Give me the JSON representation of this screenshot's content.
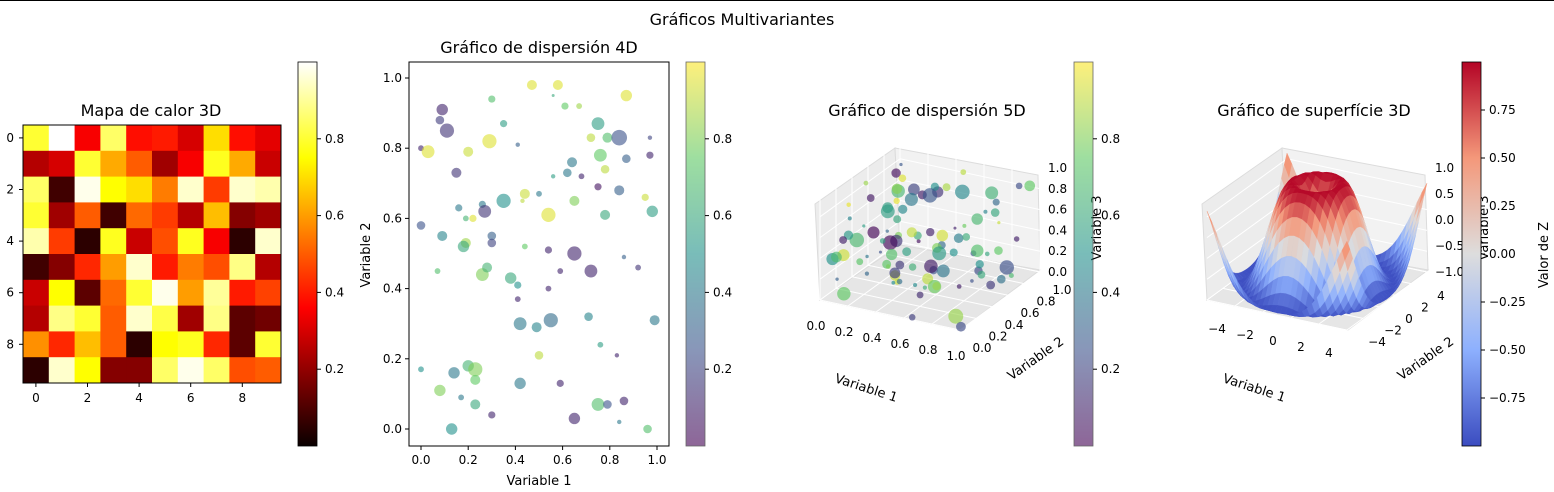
{
  "figure": {
    "suptitle": "Gráficos Multivariantes"
  },
  "chart_data": [
    {
      "type": "heatmap",
      "title": "Mapa de calor 3D",
      "xlabel": "",
      "ylabel": "",
      "x_ticks": [
        "0",
        "2",
        "4",
        "6",
        "8"
      ],
      "y_ticks": [
        "0",
        "2",
        "4",
        "6",
        "8"
      ],
      "colormap": "hot",
      "colorbar": {
        "ticks": [
          "0.2",
          "0.4",
          "0.6",
          "0.8"
        ],
        "range": [
          0.0,
          1.0
        ]
      },
      "values": [
        [
          0.8,
          1.0,
          0.35,
          0.85,
          0.38,
          0.4,
          0.3,
          0.7,
          0.38,
          0.32
        ],
        [
          0.25,
          0.3,
          0.8,
          0.62,
          0.5,
          0.22,
          0.35,
          0.78,
          0.62,
          0.28
        ],
        [
          0.85,
          0.08,
          0.98,
          0.75,
          0.7,
          0.55,
          0.95,
          0.45,
          0.95,
          0.92
        ],
        [
          0.8,
          0.22,
          0.5,
          0.08,
          0.52,
          0.45,
          0.25,
          0.65,
          0.18,
          0.22
        ],
        [
          0.92,
          0.45,
          0.05,
          0.78,
          0.28,
          0.48,
          0.78,
          0.35,
          0.05,
          0.95
        ],
        [
          0.08,
          0.18,
          0.42,
          0.6,
          0.95,
          0.4,
          0.55,
          0.48,
          0.88,
          0.25
        ],
        [
          0.28,
          0.75,
          0.12,
          0.52,
          0.8,
          0.98,
          0.6,
          0.9,
          0.4,
          0.46
        ],
        [
          0.25,
          0.88,
          0.8,
          0.5,
          0.95,
          0.82,
          0.22,
          0.88,
          0.12,
          0.15
        ],
        [
          0.58,
          0.42,
          0.65,
          0.5,
          0.05,
          0.75,
          0.78,
          0.42,
          0.12,
          0.8
        ],
        [
          0.05,
          0.95,
          0.75,
          0.18,
          0.18,
          0.85,
          0.98,
          0.85,
          0.48,
          0.5
        ]
      ]
    },
    {
      "type": "scatter",
      "title": "Gráfico de dispersión 4D",
      "xlabel": "Variable 1",
      "ylabel": "Variable 2",
      "xlim": [
        0,
        1
      ],
      "ylim": [
        0,
        1
      ],
      "x_ticks": [
        "0.0",
        "0.2",
        "0.4",
        "0.6",
        "0.8",
        "1.0"
      ],
      "y_ticks": [
        "0.0",
        "0.2",
        "0.4",
        "0.6",
        "0.8",
        "1.0"
      ],
      "colormap": "viridis",
      "alpha": 0.6,
      "colorbar": {
        "ticks": [
          "0.2",
          "0.4",
          "0.6",
          "0.8"
        ],
        "range": [
          0.0,
          1.0
        ]
      },
      "points": [
        [
          0.47,
          0.98,
          0.95,
          0.5
        ],
        [
          0.58,
          0.98,
          0.95,
          0.5
        ],
        [
          0.87,
          0.95,
          0.95,
          0.6
        ],
        [
          0.3,
          0.94,
          0.7,
          0.3
        ],
        [
          0.09,
          0.91,
          0.1,
          0.6
        ],
        [
          0.61,
          0.92,
          0.75,
          0.3
        ],
        [
          0.67,
          0.92,
          0.85,
          0.2
        ],
        [
          0.11,
          0.85,
          0.15,
          0.8
        ],
        [
          0.08,
          0.88,
          0.18,
          0.4
        ],
        [
          0.35,
          0.87,
          0.55,
          0.3
        ],
        [
          0.75,
          0.87,
          0.55,
          0.7
        ],
        [
          0.79,
          0.83,
          0.7,
          0.5
        ],
        [
          0.84,
          0.83,
          0.25,
          0.9
        ],
        [
          0.97,
          0.83,
          0.2,
          0.1
        ],
        [
          0.29,
          0.82,
          0.95,
          0.8
        ],
        [
          0.72,
          0.83,
          0.9,
          0.4
        ],
        [
          0.0,
          0.8,
          0.1,
          0.2
        ],
        [
          0.03,
          0.79,
          0.95,
          0.7
        ],
        [
          0.41,
          0.81,
          0.3,
          0.1
        ],
        [
          0.2,
          0.79,
          0.92,
          0.5
        ],
        [
          0.64,
          0.76,
          0.4,
          0.5
        ],
        [
          0.76,
          0.78,
          0.75,
          0.7
        ],
        [
          0.87,
          0.77,
          0.3,
          0.4
        ],
        [
          0.97,
          0.78,
          0.1,
          0.3
        ],
        [
          0.62,
          0.73,
          0.4,
          0.4
        ],
        [
          0.78,
          0.74,
          0.9,
          0.4
        ],
        [
          0.15,
          0.73,
          0.15,
          0.5
        ],
        [
          0.56,
          0.72,
          0.55,
          0.1
        ],
        [
          0.68,
          0.72,
          0.1,
          0.2
        ],
        [
          0.44,
          0.67,
          0.92,
          0.5
        ],
        [
          0.5,
          0.67,
          0.4,
          0.2
        ],
        [
          0.75,
          0.69,
          0.05,
          0.3
        ],
        [
          0.43,
          0.65,
          0.9,
          0.1
        ],
        [
          0.84,
          0.68,
          0.3,
          0.5
        ],
        [
          0.95,
          0.66,
          0.92,
          0.3
        ],
        [
          0.26,
          0.64,
          0.4,
          0.3
        ],
        [
          0.35,
          0.65,
          0.5,
          0.8
        ],
        [
          0.65,
          0.65,
          0.8,
          0.5
        ],
        [
          0.16,
          0.63,
          0.4,
          0.3
        ],
        [
          0.19,
          0.6,
          0.65,
          0.2
        ],
        [
          0.22,
          0.6,
          0.95,
          0.3
        ],
        [
          0.27,
          0.62,
          0.15,
          0.7
        ],
        [
          0.54,
          0.61,
          0.95,
          0.8
        ],
        [
          0.78,
          0.61,
          0.6,
          0.5
        ],
        [
          0.98,
          0.62,
          0.55,
          0.6
        ],
        [
          0.0,
          0.58,
          0.25,
          0.4
        ],
        [
          0.09,
          0.55,
          0.45,
          0.5
        ],
        [
          0.19,
          0.53,
          0.85,
          0.5
        ],
        [
          0.3,
          0.55,
          0.3,
          0.4
        ],
        [
          0.3,
          0.53,
          0.2,
          0.4
        ],
        [
          0.44,
          0.52,
          0.75,
          0.2
        ],
        [
          0.18,
          0.52,
          0.6,
          0.6
        ],
        [
          0.54,
          0.51,
          0.1,
          0.3
        ],
        [
          0.65,
          0.5,
          0.1,
          0.8
        ],
        [
          0.86,
          0.49,
          0.3,
          0.1
        ],
        [
          0.07,
          0.45,
          0.7,
          0.2
        ],
        [
          0.26,
          0.44,
          0.8,
          0.7
        ],
        [
          0.28,
          0.46,
          0.65,
          0.5
        ],
        [
          0.59,
          0.45,
          0.1,
          0.2
        ],
        [
          0.72,
          0.45,
          0.1,
          0.7
        ],
        [
          0.92,
          0.46,
          0.15,
          0.2
        ],
        [
          0.38,
          0.43,
          0.6,
          0.6
        ],
        [
          0.41,
          0.41,
          0.5,
          0.3
        ],
        [
          0.54,
          0.4,
          0.1,
          0.2
        ],
        [
          0.41,
          0.37,
          0.1,
          0.2
        ],
        [
          0.42,
          0.3,
          0.4,
          0.7
        ],
        [
          0.49,
          0.29,
          0.45,
          0.5
        ],
        [
          0.55,
          0.31,
          0.35,
          0.8
        ],
        [
          0.71,
          0.32,
          0.45,
          0.4
        ],
        [
          0.99,
          0.31,
          0.4,
          0.5
        ],
        [
          0.76,
          0.24,
          0.55,
          0.2
        ],
        [
          0.83,
          0.21,
          0.1,
          0.1
        ],
        [
          0.5,
          0.21,
          0.9,
          0.4
        ],
        [
          0.0,
          0.17,
          0.5,
          0.2
        ],
        [
          0.14,
          0.16,
          0.4,
          0.6
        ],
        [
          0.2,
          0.18,
          0.65,
          0.6
        ],
        [
          0.23,
          0.17,
          0.8,
          0.8
        ],
        [
          0.23,
          0.14,
          0.75,
          0.5
        ],
        [
          0.42,
          0.13,
          0.4,
          0.6
        ],
        [
          0.59,
          0.13,
          0.1,
          0.3
        ],
        [
          0.08,
          0.11,
          0.8,
          0.6
        ],
        [
          0.75,
          0.07,
          0.7,
          0.7
        ],
        [
          0.17,
          0.09,
          0.4,
          0.2
        ],
        [
          0.23,
          0.07,
          0.6,
          0.5
        ],
        [
          0.86,
          0.08,
          0.1,
          0.4
        ],
        [
          0.79,
          0.07,
          0.25,
          0.4
        ],
        [
          0.3,
          0.04,
          0.1,
          0.3
        ],
        [
          0.65,
          0.03,
          0.1,
          0.6
        ],
        [
          0.13,
          0.0,
          0.5,
          0.6
        ],
        [
          0.96,
          0.0,
          0.7,
          0.4
        ],
        [
          0.84,
          0.02,
          0.4,
          0.1
        ],
        [
          0.56,
          0.95,
          0.6,
          0.0
        ]
      ]
    },
    {
      "type": "scatter",
      "title": "Gráfico de dispersión 5D",
      "xlabel": "Variable 1",
      "ylabel": "Variable 2",
      "zlabel": "Variable 3",
      "xlim": [
        0,
        1
      ],
      "ylim": [
        0,
        1
      ],
      "zlim": [
        0,
        1
      ],
      "x_ticks": [
        "0.0",
        "0.2",
        "0.4",
        "0.6",
        "0.8",
        "1.0"
      ],
      "y_ticks": [
        "0.0",
        "0.2",
        "0.4",
        "0.6",
        "0.8",
        "1.0"
      ],
      "z_ticks": [
        "0.0",
        "0.2",
        "0.4",
        "0.6",
        "0.8",
        "1.0"
      ],
      "projection": "3d",
      "colormap": "viridis",
      "colorbar": {
        "ticks": [
          "0.2",
          "0.4",
          "0.6",
          "0.8"
        ],
        "range": [
          0.0,
          1.0
        ]
      }
    },
    {
      "type": "area",
      "title": "Gráfico de superfície 3D",
      "xlabel": "Variable 1",
      "ylabel": "Variable 2",
      "zlabel": "Variable 3",
      "surface_function": "sin(sqrt(x^2 + y^2))",
      "xlim": [
        -5,
        5
      ],
      "ylim": [
        -5,
        5
      ],
      "zlim": [
        -1,
        1
      ],
      "x_ticks": [
        "−4",
        "−2",
        "0",
        "2",
        "4"
      ],
      "y_ticks": [
        "−4",
        "−2",
        "0",
        "2",
        "4"
      ],
      "z_ticks": [
        "−1.0",
        "−0.5",
        "0.0",
        "0.5",
        "1.0"
      ],
      "projection": "3d",
      "colormap": "coolwarm",
      "colorbar": {
        "label": "Valor de Z",
        "ticks": [
          "0.75",
          "0.50",
          "0.25",
          "0.00",
          "−0.25",
          "−0.50",
          "−0.75"
        ],
        "range": [
          -1.0,
          1.0
        ]
      }
    }
  ]
}
